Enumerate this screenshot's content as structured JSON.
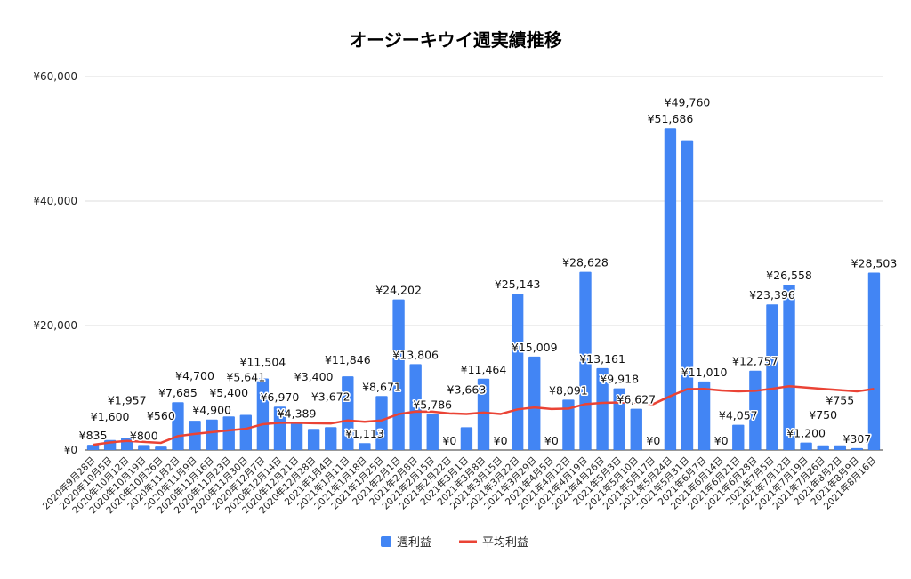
{
  "chart_data": {
    "type": "bar",
    "title": "オージーキウイ週実績推移",
    "xlabel": "",
    "ylabel": "",
    "ylim": [
      0,
      60000
    ],
    "yticks": [
      "¥0",
      "¥20,000",
      "¥40,000",
      "¥60,000"
    ],
    "ytick_values": [
      0,
      20000,
      40000,
      60000
    ],
    "grid": true,
    "legend_position": "bottom",
    "colors": {
      "bars": "#4285f4",
      "line": "#ea4335"
    },
    "categories": [
      "2020年9月28日",
      "2020年10月5日",
      "2020年10月12日",
      "2020年10月19日",
      "2020年10月26日",
      "2020年11月2日",
      "2020年11月9日",
      "2020年11月16日",
      "2020年11月23日",
      "2020年11月30日",
      "2020年12月7日",
      "2020年12月14日",
      "2020年12月21日",
      "2020年12月28日",
      "2021年1月4日",
      "2021年1月11日",
      "2021年1月18日",
      "2021年1月25日",
      "2021年2月1日",
      "2021年2月8日",
      "2021年2月15日",
      "2021年2月22日",
      "2021年3月1日",
      "2021年3月8日",
      "2021年3月15日",
      "2021年3月22日",
      "2021年3月29日",
      "2021年4月5日",
      "2021年4月12日",
      "2021年4月19日",
      "2021年4月26日",
      "2021年5月3日",
      "2021年5月10日",
      "2021年5月17日",
      "2021年5月24日",
      "2021年5月31日",
      "2021年6月7日",
      "2021年6月14日",
      "2021年6月21日",
      "2021年6月28日",
      "2021年7月5日",
      "2021年7月12日",
      "2021年7月19日",
      "2021年7月26日",
      "2021年8月2日",
      "2021年8月9日",
      "2021年8月16日"
    ],
    "series": [
      {
        "name": "週利益",
        "type": "bar",
        "values": [
          835,
          1600,
          1957,
          800,
          560,
          7685,
          4700,
          4900,
          5400,
          5641,
          11504,
          6970,
          4389,
          3400,
          3672,
          11846,
          1113,
          8671,
          24202,
          13806,
          5786,
          0,
          3663,
          11464,
          0,
          25143,
          15009,
          0,
          8091,
          28628,
          13161,
          9918,
          6627,
          0,
          51686,
          49760,
          11010,
          0,
          4057,
          12757,
          23396,
          26558,
          1200,
          750,
          755,
          307,
          28503
        ]
      },
      {
        "name": "平均利益",
        "type": "line",
        "method": "cumulative average of 週利益"
      }
    ]
  }
}
